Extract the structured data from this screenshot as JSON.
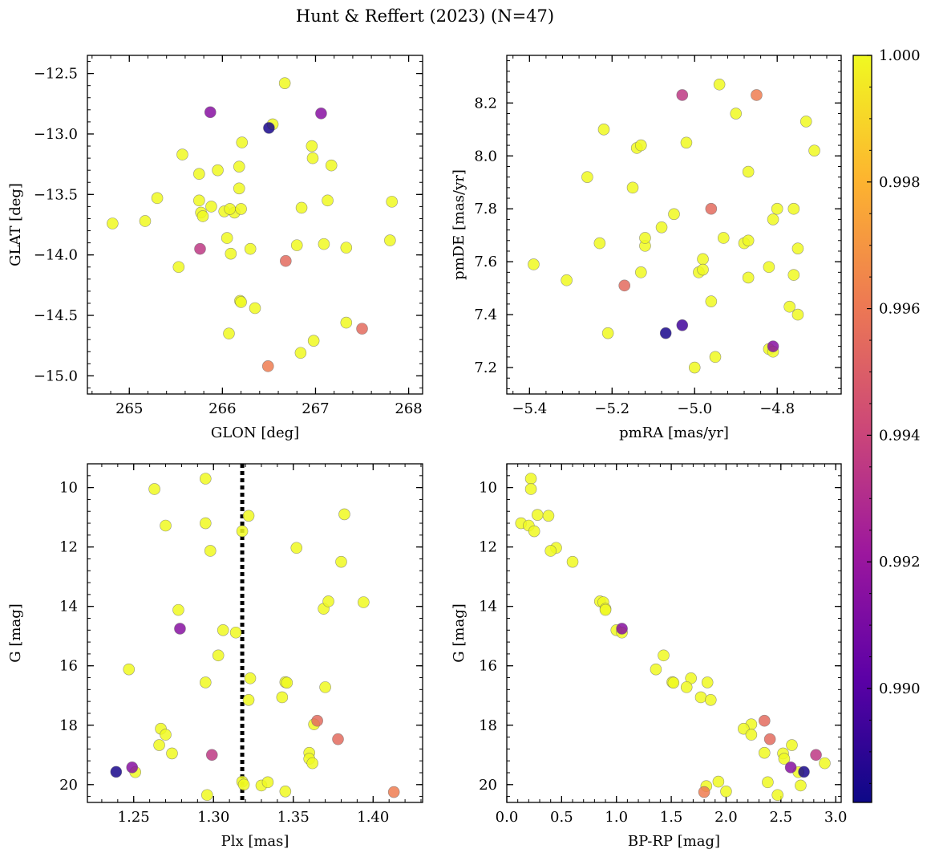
{
  "figure": {
    "title": "Hunt & Reffert (2023) (N=47)"
  },
  "colorbar": {
    "min": 0.9882,
    "max": 1.0,
    "ticks": [
      0.99,
      0.992,
      0.994,
      0.996,
      0.998,
      1.0
    ],
    "tick_labels": [
      "0.990",
      "0.992",
      "0.994",
      "0.996",
      "0.998",
      "1.000"
    ],
    "colormap": "plasma",
    "colormap_stops": [
      "#0d0887",
      "#5c01a6",
      "#9c179e",
      "#cc4778",
      "#ed7953",
      "#fdb42f",
      "#f0f921"
    ]
  },
  "chart_data": [
    {
      "type": "scatter",
      "xlabel": "GLON [deg]",
      "ylabel": "GLAT [deg]",
      "xlim": [
        264.55,
        268.15
      ],
      "ylim": [
        -15.15,
        -12.35
      ],
      "xticks": [
        265,
        266,
        267,
        268
      ],
      "xtick_labels": [
        "265",
        "266",
        "267",
        "268"
      ],
      "yticks": [
        -12.5,
        -13.0,
        -13.5,
        -14.0,
        -14.5,
        -15.0
      ],
      "ytick_labels": [
        "−12.5",
        "−13.0",
        "−13.5",
        "−14.0",
        "−14.5",
        "−15.0"
      ],
      "points": [
        {
          "x": 264.82,
          "y": -13.74,
          "c": 1.0
        },
        {
          "x": 265.17,
          "y": -13.72,
          "c": 1.0
        },
        {
          "x": 265.3,
          "y": -13.53,
          "c": 1.0
        },
        {
          "x": 265.53,
          "y": -14.1,
          "c": 1.0
        },
        {
          "x": 265.57,
          "y": -13.17,
          "c": 1.0
        },
        {
          "x": 265.75,
          "y": -13.33,
          "c": 1.0
        },
        {
          "x": 265.75,
          "y": -13.55,
          "c": 1.0
        },
        {
          "x": 265.77,
          "y": -13.65,
          "c": 1.0
        },
        {
          "x": 265.79,
          "y": -13.68,
          "c": 1.0
        },
        {
          "x": 265.76,
          "y": -13.95,
          "c": 0.9935
        },
        {
          "x": 265.88,
          "y": -13.6,
          "c": 1.0
        },
        {
          "x": 265.87,
          "y": -12.82,
          "c": 0.9915
        },
        {
          "x": 266.02,
          "y": -13.64,
          "c": 1.0
        },
        {
          "x": 266.05,
          "y": -13.86,
          "c": 1.0
        },
        {
          "x": 266.07,
          "y": -14.65,
          "c": 1.0
        },
        {
          "x": 266.09,
          "y": -13.99,
          "c": 1.0
        },
        {
          "x": 266.13,
          "y": -13.65,
          "c": 1.0
        },
        {
          "x": 266.18,
          "y": -13.45,
          "c": 1.0
        },
        {
          "x": 266.18,
          "y": -13.27,
          "c": 1.0
        },
        {
          "x": 266.2,
          "y": -13.62,
          "c": 1.0
        },
        {
          "x": 266.21,
          "y": -13.07,
          "c": 1.0
        },
        {
          "x": 266.19,
          "y": -14.38,
          "c": 1.0
        },
        {
          "x": 266.2,
          "y": -14.39,
          "c": 1.0
        },
        {
          "x": 266.3,
          "y": -13.95,
          "c": 1.0
        },
        {
          "x": 266.35,
          "y": -14.44,
          "c": 1.0
        },
        {
          "x": 266.5,
          "y": -12.95,
          "c": 0.9885
        },
        {
          "x": 266.54,
          "y": -12.92,
          "c": 1.0
        },
        {
          "x": 266.67,
          "y": -12.58,
          "c": 1.0
        },
        {
          "x": 266.68,
          "y": -14.05,
          "c": 0.9955
        },
        {
          "x": 266.49,
          "y": -14.92,
          "c": 0.9962
        },
        {
          "x": 266.8,
          "y": -13.92,
          "c": 1.0
        },
        {
          "x": 266.84,
          "y": -14.81,
          "c": 1.0
        },
        {
          "x": 266.85,
          "y": -13.61,
          "c": 1.0
        },
        {
          "x": 266.96,
          "y": -13.1,
          "c": 1.0
        },
        {
          "x": 266.97,
          "y": -13.2,
          "c": 1.0
        },
        {
          "x": 266.98,
          "y": -14.71,
          "c": 1.0
        },
        {
          "x": 267.06,
          "y": -12.83,
          "c": 0.9915
        },
        {
          "x": 267.09,
          "y": -13.91,
          "c": 1.0
        },
        {
          "x": 267.13,
          "y": -13.55,
          "c": 1.0
        },
        {
          "x": 267.17,
          "y": -13.26,
          "c": 1.0
        },
        {
          "x": 267.33,
          "y": -13.94,
          "c": 1.0
        },
        {
          "x": 267.33,
          "y": -14.56,
          "c": 1.0
        },
        {
          "x": 267.5,
          "y": -14.61,
          "c": 0.9955
        },
        {
          "x": 267.8,
          "y": -13.88,
          "c": 1.0
        },
        {
          "x": 267.82,
          "y": -13.56,
          "c": 1.0
        },
        {
          "x": 266.08,
          "y": -13.62,
          "c": 1.0
        },
        {
          "x": 265.95,
          "y": -13.3,
          "c": 1.0
        }
      ]
    },
    {
      "type": "scatter",
      "xlabel": "pmRA [mas/yr]",
      "ylabel": "pmDE [mas/yr]",
      "xlim": [
        -5.455,
        -4.645
      ],
      "ylim": [
        7.1,
        8.38
      ],
      "xticks": [
        -5.4,
        -5.2,
        -5.0,
        -4.8
      ],
      "xtick_labels": [
        "−5.4",
        "−5.2",
        "−5.0",
        "−4.8"
      ],
      "yticks": [
        7.2,
        7.4,
        7.6,
        7.8,
        8.0,
        8.2
      ],
      "ytick_labels": [
        "7.2",
        "7.4",
        "7.6",
        "7.8",
        "8.0",
        "8.2"
      ],
      "points": [
        {
          "x": -5.39,
          "y": 7.59,
          "c": 1.0
        },
        {
          "x": -5.31,
          "y": 7.53,
          "c": 1.0
        },
        {
          "x": -5.26,
          "y": 7.92,
          "c": 1.0
        },
        {
          "x": -5.23,
          "y": 7.67,
          "c": 1.0
        },
        {
          "x": -5.22,
          "y": 8.1,
          "c": 1.0
        },
        {
          "x": -5.21,
          "y": 7.33,
          "c": 1.0
        },
        {
          "x": -5.17,
          "y": 7.51,
          "c": 0.9955
        },
        {
          "x": -5.15,
          "y": 7.88,
          "c": 1.0
        },
        {
          "x": -5.14,
          "y": 8.03,
          "c": 1.0
        },
        {
          "x": -5.13,
          "y": 8.04,
          "c": 1.0
        },
        {
          "x": -5.13,
          "y": 7.56,
          "c": 1.0
        },
        {
          "x": -5.12,
          "y": 7.66,
          "c": 1.0
        },
        {
          "x": -5.12,
          "y": 7.69,
          "c": 1.0
        },
        {
          "x": -5.08,
          "y": 7.73,
          "c": 1.0
        },
        {
          "x": -5.07,
          "y": 7.33,
          "c": 0.9885
        },
        {
          "x": -5.05,
          "y": 7.78,
          "c": 1.0
        },
        {
          "x": -5.03,
          "y": 7.36,
          "c": 0.9895
        },
        {
          "x": -5.03,
          "y": 8.23,
          "c": 0.9935
        },
        {
          "x": -5.02,
          "y": 8.05,
          "c": 1.0
        },
        {
          "x": -5.0,
          "y": 7.2,
          "c": 1.0
        },
        {
          "x": -4.99,
          "y": 7.56,
          "c": 1.0
        },
        {
          "x": -4.98,
          "y": 7.61,
          "c": 1.0
        },
        {
          "x": -4.98,
          "y": 7.57,
          "c": 1.0
        },
        {
          "x": -4.96,
          "y": 7.8,
          "c": 0.9955
        },
        {
          "x": -4.96,
          "y": 7.45,
          "c": 1.0
        },
        {
          "x": -4.95,
          "y": 7.24,
          "c": 1.0
        },
        {
          "x": -4.94,
          "y": 8.27,
          "c": 1.0
        },
        {
          "x": -4.93,
          "y": 7.69,
          "c": 1.0
        },
        {
          "x": -4.9,
          "y": 8.16,
          "c": 1.0
        },
        {
          "x": -4.88,
          "y": 7.67,
          "c": 1.0
        },
        {
          "x": -4.87,
          "y": 7.68,
          "c": 1.0
        },
        {
          "x": -4.87,
          "y": 7.54,
          "c": 1.0
        },
        {
          "x": -4.87,
          "y": 7.94,
          "c": 1.0
        },
        {
          "x": -4.85,
          "y": 8.23,
          "c": 0.9962
        },
        {
          "x": -4.82,
          "y": 7.58,
          "c": 1.0
        },
        {
          "x": -4.82,
          "y": 7.27,
          "c": 1.0
        },
        {
          "x": -4.81,
          "y": 7.28,
          "c": 0.9915
        },
        {
          "x": -4.81,
          "y": 7.26,
          "c": 1.0
        },
        {
          "x": -4.81,
          "y": 7.76,
          "c": 1.0
        },
        {
          "x": -4.8,
          "y": 7.8,
          "c": 1.0
        },
        {
          "x": -4.77,
          "y": 7.43,
          "c": 1.0
        },
        {
          "x": -4.76,
          "y": 7.55,
          "c": 1.0
        },
        {
          "x": -4.76,
          "y": 7.8,
          "c": 1.0
        },
        {
          "x": -4.75,
          "y": 7.65,
          "c": 1.0
        },
        {
          "x": -4.75,
          "y": 7.4,
          "c": 1.0
        },
        {
          "x": -4.73,
          "y": 8.13,
          "c": 1.0
        },
        {
          "x": -4.71,
          "y": 8.02,
          "c": 1.0
        }
      ]
    },
    {
      "type": "scatter",
      "xlabel": "Plx [mas]",
      "ylabel": "G [mag]",
      "xlim": [
        1.221,
        1.431
      ],
      "ylim": [
        20.6,
        9.2
      ],
      "xticks": [
        1.25,
        1.3,
        1.35,
        1.4
      ],
      "xtick_labels": [
        "1.25",
        "1.30",
        "1.35",
        "1.40"
      ],
      "yticks": [
        10,
        12,
        14,
        16,
        18,
        20
      ],
      "ytick_labels": [
        "10",
        "12",
        "14",
        "16",
        "18",
        "20"
      ],
      "vline": {
        "x": 1.318,
        "style": "dotted",
        "color": "#000000"
      },
      "points": [
        {
          "x": 1.239,
          "y": 19.57,
          "c": 0.9885
        },
        {
          "x": 1.247,
          "y": 16.12,
          "c": 1.0
        },
        {
          "x": 1.249,
          "y": 19.42,
          "c": 0.9915
        },
        {
          "x": 1.251,
          "y": 19.58,
          "c": 1.0
        },
        {
          "x": 1.263,
          "y": 10.05,
          "c": 1.0
        },
        {
          "x": 1.266,
          "y": 18.67,
          "c": 1.0
        },
        {
          "x": 1.267,
          "y": 18.12,
          "c": 1.0
        },
        {
          "x": 1.27,
          "y": 11.28,
          "c": 1.0
        },
        {
          "x": 1.27,
          "y": 18.32,
          "c": 1.0
        },
        {
          "x": 1.274,
          "y": 18.95,
          "c": 1.0
        },
        {
          "x": 1.278,
          "y": 14.12,
          "c": 1.0
        },
        {
          "x": 1.279,
          "y": 14.75,
          "c": 0.9915
        },
        {
          "x": 1.295,
          "y": 9.7,
          "c": 1.0
        },
        {
          "x": 1.295,
          "y": 11.2,
          "c": 1.0
        },
        {
          "x": 1.295,
          "y": 16.56,
          "c": 1.0
        },
        {
          "x": 1.296,
          "y": 20.35,
          "c": 1.0
        },
        {
          "x": 1.298,
          "y": 12.13,
          "c": 1.0
        },
        {
          "x": 1.299,
          "y": 19.0,
          "c": 0.9935
        },
        {
          "x": 1.303,
          "y": 15.65,
          "c": 1.0
        },
        {
          "x": 1.306,
          "y": 14.8,
          "c": 1.0
        },
        {
          "x": 1.314,
          "y": 14.88,
          "c": 1.0
        },
        {
          "x": 1.318,
          "y": 11.47,
          "c": 1.0
        },
        {
          "x": 1.318,
          "y": 19.9,
          "c": 1.0
        },
        {
          "x": 1.319,
          "y": 20.0,
          "c": 1.0
        },
        {
          "x": 1.322,
          "y": 10.95,
          "c": 1.0
        },
        {
          "x": 1.322,
          "y": 17.15,
          "c": 1.0
        },
        {
          "x": 1.323,
          "y": 16.42,
          "c": 1.0
        },
        {
          "x": 1.33,
          "y": 20.03,
          "c": 1.0
        },
        {
          "x": 1.334,
          "y": 19.92,
          "c": 1.0
        },
        {
          "x": 1.343,
          "y": 17.06,
          "c": 1.0
        },
        {
          "x": 1.345,
          "y": 20.23,
          "c": 1.0
        },
        {
          "x": 1.345,
          "y": 16.55,
          "c": 1.0
        },
        {
          "x": 1.346,
          "y": 16.57,
          "c": 1.0
        },
        {
          "x": 1.352,
          "y": 12.03,
          "c": 1.0
        },
        {
          "x": 1.36,
          "y": 18.93,
          "c": 1.0
        },
        {
          "x": 1.36,
          "y": 19.13,
          "c": 1.0
        },
        {
          "x": 1.362,
          "y": 19.28,
          "c": 1.0
        },
        {
          "x": 1.363,
          "y": 17.97,
          "c": 1.0
        },
        {
          "x": 1.365,
          "y": 17.85,
          "c": 0.9955
        },
        {
          "x": 1.369,
          "y": 14.08,
          "c": 1.0
        },
        {
          "x": 1.37,
          "y": 16.72,
          "c": 1.0
        },
        {
          "x": 1.372,
          "y": 13.83,
          "c": 1.0
        },
        {
          "x": 1.378,
          "y": 18.47,
          "c": 0.9955
        },
        {
          "x": 1.38,
          "y": 12.5,
          "c": 1.0
        },
        {
          "x": 1.382,
          "y": 10.9,
          "c": 1.0
        },
        {
          "x": 1.394,
          "y": 13.86,
          "c": 1.0
        },
        {
          "x": 1.413,
          "y": 20.25,
          "c": 0.9962
        }
      ]
    },
    {
      "type": "scatter",
      "xlabel": "BP-RP [mag]",
      "ylabel": "G [mag]",
      "xlim": [
        0.0,
        3.05
      ],
      "ylim": [
        20.6,
        9.2
      ],
      "xticks": [
        0.0,
        0.5,
        1.0,
        1.5,
        2.0,
        2.5,
        3.0
      ],
      "xtick_labels": [
        "0.0",
        "0.5",
        "1.0",
        "1.5",
        "2.0",
        "2.5",
        "3.0"
      ],
      "yticks": [
        10,
        12,
        14,
        16,
        18,
        20
      ],
      "ytick_labels": [
        "10",
        "12",
        "14",
        "16",
        "18",
        "20"
      ],
      "points": [
        {
          "x": 0.22,
          "y": 9.7,
          "c": 1.0
        },
        {
          "x": 0.22,
          "y": 10.05,
          "c": 1.0
        },
        {
          "x": 0.28,
          "y": 10.92,
          "c": 1.0
        },
        {
          "x": 0.38,
          "y": 10.95,
          "c": 1.0
        },
        {
          "x": 0.13,
          "y": 11.2,
          "c": 1.0
        },
        {
          "x": 0.2,
          "y": 11.28,
          "c": 1.0
        },
        {
          "x": 0.25,
          "y": 11.47,
          "c": 1.0
        },
        {
          "x": 0.45,
          "y": 12.03,
          "c": 1.0
        },
        {
          "x": 0.4,
          "y": 12.13,
          "c": 1.0
        },
        {
          "x": 0.6,
          "y": 12.5,
          "c": 1.0
        },
        {
          "x": 0.85,
          "y": 13.83,
          "c": 1.0
        },
        {
          "x": 0.88,
          "y": 13.86,
          "c": 1.0
        },
        {
          "x": 0.9,
          "y": 14.08,
          "c": 1.0
        },
        {
          "x": 0.9,
          "y": 14.12,
          "c": 1.0
        },
        {
          "x": 1.05,
          "y": 14.75,
          "c": 0.9915
        },
        {
          "x": 1.0,
          "y": 14.8,
          "c": 1.0
        },
        {
          "x": 1.05,
          "y": 14.88,
          "c": 1.0
        },
        {
          "x": 1.43,
          "y": 15.65,
          "c": 1.0
        },
        {
          "x": 1.36,
          "y": 16.12,
          "c": 1.0
        },
        {
          "x": 1.51,
          "y": 16.55,
          "c": 1.0
        },
        {
          "x": 1.52,
          "y": 16.57,
          "c": 1.0
        },
        {
          "x": 1.68,
          "y": 16.42,
          "c": 1.0
        },
        {
          "x": 1.83,
          "y": 16.56,
          "c": 1.0
        },
        {
          "x": 1.64,
          "y": 16.72,
          "c": 1.0
        },
        {
          "x": 1.77,
          "y": 17.06,
          "c": 1.0
        },
        {
          "x": 1.86,
          "y": 17.15,
          "c": 1.0
        },
        {
          "x": 2.35,
          "y": 17.85,
          "c": 0.9955
        },
        {
          "x": 2.23,
          "y": 17.97,
          "c": 1.0
        },
        {
          "x": 2.16,
          "y": 18.12,
          "c": 1.0
        },
        {
          "x": 2.23,
          "y": 18.32,
          "c": 1.0
        },
        {
          "x": 2.4,
          "y": 18.47,
          "c": 0.9955
        },
        {
          "x": 2.6,
          "y": 18.67,
          "c": 1.0
        },
        {
          "x": 2.35,
          "y": 18.93,
          "c": 1.0
        },
        {
          "x": 2.52,
          "y": 18.95,
          "c": 1.0
        },
        {
          "x": 2.82,
          "y": 19.0,
          "c": 0.9935
        },
        {
          "x": 2.53,
          "y": 19.13,
          "c": 1.0
        },
        {
          "x": 2.9,
          "y": 19.28,
          "c": 1.0
        },
        {
          "x": 2.59,
          "y": 19.42,
          "c": 0.9915
        },
        {
          "x": 2.71,
          "y": 19.57,
          "c": 0.9885
        },
        {
          "x": 2.66,
          "y": 19.58,
          "c": 1.0
        },
        {
          "x": 1.93,
          "y": 19.9,
          "c": 1.0
        },
        {
          "x": 2.38,
          "y": 19.92,
          "c": 1.0
        },
        {
          "x": 2.68,
          "y": 20.03,
          "c": 1.0
        },
        {
          "x": 1.82,
          "y": 20.05,
          "c": 1.0
        },
        {
          "x": 2.0,
          "y": 20.23,
          "c": 1.0
        },
        {
          "x": 1.8,
          "y": 20.25,
          "c": 0.9962
        },
        {
          "x": 2.47,
          "y": 20.35,
          "c": 1.0
        }
      ]
    }
  ]
}
